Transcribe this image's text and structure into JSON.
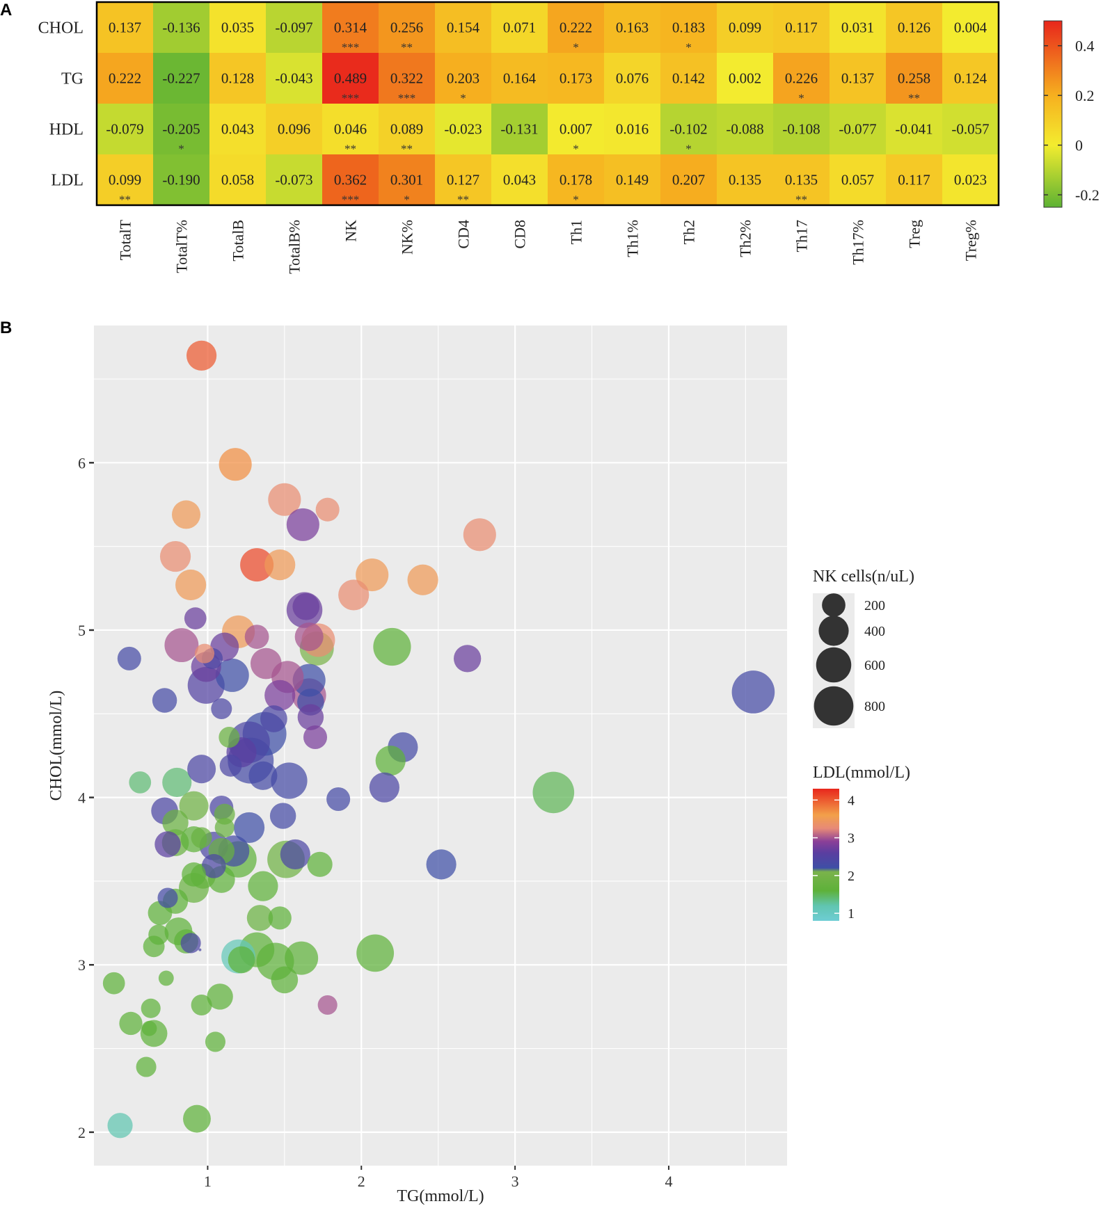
{
  "panels": {
    "a": "A",
    "b": "B"
  },
  "chart_data": [
    {
      "type": "heatmap",
      "rows": [
        "CHOL",
        "TG",
        "HDL",
        "LDL"
      ],
      "columns": [
        "TotalT",
        "TotalT%",
        "TotalB",
        "TotalB%",
        "NK",
        "NK%",
        "CD4",
        "CD8",
        "Th1",
        "Th1%",
        "Th2",
        "Th2%",
        "Th17",
        "Th17%",
        "Treg",
        "Treg%"
      ],
      "values": [
        [
          "0.137",
          "-0.136",
          "0.035",
          "-0.097",
          "0.314",
          "0.256",
          "0.154",
          "0.071",
          "0.222",
          "0.163",
          "0.183",
          "0.099",
          "0.117",
          "0.031",
          "0.126",
          "0.004"
        ],
        [
          "0.222",
          "-0.227",
          "0.128",
          "-0.043",
          "0.489",
          "0.322",
          "0.203",
          "0.164",
          "0.173",
          "0.076",
          "0.142",
          "0.002",
          "0.226",
          "0.137",
          "0.258",
          "0.124"
        ],
        [
          "-0.079",
          "-0.205",
          "0.043",
          "0.096",
          "0.046",
          "0.089",
          "-0.023",
          "-0.131",
          "0.007",
          "0.016",
          "-0.102",
          "-0.088",
          "-0.108",
          "-0.077",
          "-0.041",
          "-0.057"
        ],
        [
          "0.099",
          "-0.190",
          "0.058",
          "-0.073",
          "0.362",
          "0.301",
          "0.127",
          "0.043",
          "0.178",
          "0.149",
          "0.207",
          "0.135",
          "0.135",
          "0.057",
          "0.117",
          "0.023"
        ]
      ],
      "significance": [
        [
          "",
          "",
          "",
          "",
          "***",
          "**",
          "",
          "",
          "*",
          "",
          "*",
          "",
          "",
          "",
          "",
          ""
        ],
        [
          "",
          "",
          "",
          "",
          "***",
          "***",
          "*",
          "",
          "",
          "",
          "",
          "",
          "*",
          "",
          "**",
          ""
        ],
        [
          "",
          "*",
          "",
          "",
          "**",
          "**",
          "",
          "",
          "*",
          "",
          "*",
          "",
          "",
          "",
          "",
          ""
        ],
        [
          "**",
          "",
          "",
          "",
          "***",
          "*",
          "**",
          "",
          "*",
          "",
          "",
          "",
          "**",
          "",
          "",
          ""
        ]
      ],
      "colorbar": {
        "ticks": [
          "0.4",
          "0.2",
          "0",
          "-0.2"
        ],
        "tick_values": [
          0.4,
          0.2,
          0,
          -0.2
        ],
        "range": [
          -0.25,
          0.5
        ]
      },
      "colors": {
        "low": "#5db233",
        "mid": "#f3ec2f",
        "high": "#e8261c"
      }
    },
    {
      "type": "scatter",
      "xlabel": "TG(mmol/L)",
      "ylabel": "CHOL(mmol/L)",
      "xlim": [
        0.26,
        4.77
      ],
      "ylim": [
        1.8,
        6.82
      ],
      "xticks": [
        "1",
        "2",
        "3",
        "4"
      ],
      "xtick_values": [
        1,
        2,
        3,
        4
      ],
      "yticks": [
        "2",
        "3",
        "4",
        "5",
        "6"
      ],
      "ytick_values": [
        2,
        3,
        4,
        5,
        6
      ],
      "size_legend": {
        "title": "NK cells(n/uL)",
        "labels": [
          "200",
          "400",
          "600",
          "800"
        ],
        "values": [
          200,
          400,
          600,
          800
        ]
      },
      "color_legend": {
        "title": "LDL(mmol/L)",
        "labels": [
          "4",
          "3",
          "2",
          "1"
        ],
        "values": [
          4,
          3,
          2,
          1
        ],
        "range": [
          0.8,
          4.3
        ]
      },
      "points": [
        {
          "tg": 0.96,
          "chol": 6.64,
          "nk": 300,
          "ldl": 4.0
        },
        {
          "tg": 1.18,
          "chol": 5.99,
          "nk": 380,
          "ldl": 3.7
        },
        {
          "tg": 1.5,
          "chol": 5.78,
          "nk": 380,
          "ldl": 3.3
        },
        {
          "tg": 1.78,
          "chol": 5.72,
          "nk": 150,
          "ldl": 3.3
        },
        {
          "tg": 0.86,
          "chol": 5.69,
          "nk": 260,
          "ldl": 3.5
        },
        {
          "tg": 1.62,
          "chol": 5.63,
          "nk": 380,
          "ldl": 2.8
        },
        {
          "tg": 2.77,
          "chol": 5.57,
          "nk": 380,
          "ldl": 3.3
        },
        {
          "tg": 0.79,
          "chol": 5.44,
          "nk": 320,
          "ldl": 3.3
        },
        {
          "tg": 1.32,
          "chol": 5.39,
          "nk": 400,
          "ldl": 4.1
        },
        {
          "tg": 1.47,
          "chol": 5.39,
          "nk": 320,
          "ldl": 3.5
        },
        {
          "tg": 2.07,
          "chol": 5.33,
          "nk": 380,
          "ldl": 3.5
        },
        {
          "tg": 2.4,
          "chol": 5.3,
          "nk": 320,
          "ldl": 3.5
        },
        {
          "tg": 0.89,
          "chol": 5.27,
          "nk": 320,
          "ldl": 3.5
        },
        {
          "tg": 1.95,
          "chol": 5.21,
          "nk": 320,
          "ldl": 3.3
        },
        {
          "tg": 1.63,
          "chol": 5.12,
          "nk": 480,
          "ldl": 2.7
        },
        {
          "tg": 1.64,
          "chol": 5.14,
          "nk": 220,
          "ldl": 2.7
        },
        {
          "tg": 0.92,
          "chol": 5.07,
          "nk": 120,
          "ldl": 2.7
        },
        {
          "tg": 1.2,
          "chol": 4.99,
          "nk": 380,
          "ldl": 3.5
        },
        {
          "tg": 1.32,
          "chol": 4.96,
          "nk": 160,
          "ldl": 3.0
        },
        {
          "tg": 1.66,
          "chol": 4.96,
          "nk": 260,
          "ldl": 3.0
        },
        {
          "tg": 1.72,
          "chol": 4.94,
          "nk": 400,
          "ldl": 3.3
        },
        {
          "tg": 0.83,
          "chol": 4.91,
          "nk": 420,
          "ldl": 3.0
        },
        {
          "tg": 1.11,
          "chol": 4.9,
          "nk": 260,
          "ldl": 2.7
        },
        {
          "tg": 2.2,
          "chol": 4.9,
          "nk": 550,
          "ldl": 1.6
        },
        {
          "tg": 1.71,
          "chol": 4.89,
          "nk": 420,
          "ldl": 2.1
        },
        {
          "tg": 0.98,
          "chol": 4.86,
          "nk": 80,
          "ldl": 3.3
        },
        {
          "tg": 0.49,
          "chol": 4.83,
          "nk": 150,
          "ldl": 2.3
        },
        {
          "tg": 1.03,
          "chol": 4.83,
          "nk": 100,
          "ldl": 2.4
        },
        {
          "tg": 2.69,
          "chol": 4.83,
          "nk": 230,
          "ldl": 2.7
        },
        {
          "tg": 1.38,
          "chol": 4.8,
          "nk": 330,
          "ldl": 3.0
        },
        {
          "tg": 0.99,
          "chol": 4.78,
          "nk": 300,
          "ldl": 2.7
        },
        {
          "tg": 1.16,
          "chol": 4.73,
          "nk": 400,
          "ldl": 2.2
        },
        {
          "tg": 1.52,
          "chol": 4.72,
          "nk": 360,
          "ldl": 3.0
        },
        {
          "tg": 1.66,
          "chol": 4.7,
          "nk": 380,
          "ldl": 2.2
        },
        {
          "tg": 0.99,
          "chol": 4.67,
          "nk": 520,
          "ldl": 2.5
        },
        {
          "tg": 4.55,
          "chol": 4.63,
          "nk": 760,
          "ldl": 2.3
        },
        {
          "tg": 1.47,
          "chol": 4.61,
          "nk": 320,
          "ldl": 2.8
        },
        {
          "tg": 1.66,
          "chol": 4.61,
          "nk": 420,
          "ldl": 3.0
        },
        {
          "tg": 0.72,
          "chol": 4.58,
          "nk": 170,
          "ldl": 2.3
        },
        {
          "tg": 1.67,
          "chol": 4.57,
          "nk": 220,
          "ldl": 2.2
        },
        {
          "tg": 1.09,
          "chol": 4.53,
          "nk": 100,
          "ldl": 2.4
        },
        {
          "tg": 1.67,
          "chol": 4.48,
          "nk": 200,
          "ldl": 2.7
        },
        {
          "tg": 1.43,
          "chol": 4.47,
          "nk": 220,
          "ldl": 2.4
        },
        {
          "tg": 1.37,
          "chol": 4.38,
          "nk": 800,
          "ldl": 2.2
        },
        {
          "tg": 1.7,
          "chol": 4.36,
          "nk": 150,
          "ldl": 2.8
        },
        {
          "tg": 1.14,
          "chol": 4.36,
          "nk": 100,
          "ldl": 1.8
        },
        {
          "tg": 1.27,
          "chol": 4.33,
          "nk": 700,
          "ldl": 2.4
        },
        {
          "tg": 2.27,
          "chol": 4.3,
          "nk": 300,
          "ldl": 2.3
        },
        {
          "tg": 1.22,
          "chol": 4.27,
          "nk": 300,
          "ldl": 2.6
        },
        {
          "tg": 1.28,
          "chol": 4.22,
          "nk": 900,
          "ldl": 2.3
        },
        {
          "tg": 2.19,
          "chol": 4.22,
          "nk": 300,
          "ldl": 1.6
        },
        {
          "tg": 0.96,
          "chol": 4.17,
          "nk": 260,
          "ldl": 2.4
        },
        {
          "tg": 1.15,
          "chol": 4.19,
          "nk": 120,
          "ldl": 2.4
        },
        {
          "tg": 1.36,
          "chol": 4.13,
          "nk": 260,
          "ldl": 2.3
        },
        {
          "tg": 1.53,
          "chol": 4.1,
          "nk": 500,
          "ldl": 2.3
        },
        {
          "tg": 0.8,
          "chol": 4.09,
          "nk": 280,
          "ldl": 1.4
        },
        {
          "tg": 0.56,
          "chol": 4.09,
          "nk": 120,
          "ldl": 1.4
        },
        {
          "tg": 2.15,
          "chol": 4.06,
          "nk": 300,
          "ldl": 2.4
        },
        {
          "tg": 3.25,
          "chol": 4.03,
          "nk": 700,
          "ldl": 1.5
        },
        {
          "tg": 1.85,
          "chol": 3.99,
          "nk": 150,
          "ldl": 2.3
        },
        {
          "tg": 0.91,
          "chol": 3.95,
          "nk": 280,
          "ldl": 1.9
        },
        {
          "tg": 1.09,
          "chol": 3.94,
          "nk": 150,
          "ldl": 2.4
        },
        {
          "tg": 0.72,
          "chol": 3.92,
          "nk": 220,
          "ldl": 2.4
        },
        {
          "tg": 1.11,
          "chol": 3.9,
          "nk": 100,
          "ldl": 1.8
        },
        {
          "tg": 1.49,
          "chol": 3.89,
          "nk": 200,
          "ldl": 2.3
        },
        {
          "tg": 0.79,
          "chol": 3.85,
          "nk": 200,
          "ldl": 1.8
        },
        {
          "tg": 1.27,
          "chol": 3.82,
          "nk": 320,
          "ldl": 2.2
        },
        {
          "tg": 1.11,
          "chol": 3.82,
          "nk": 80,
          "ldl": 1.8
        },
        {
          "tg": 0.91,
          "chol": 3.75,
          "nk": 200,
          "ldl": 1.6
        },
        {
          "tg": 0.96,
          "chol": 3.76,
          "nk": 100,
          "ldl": 1.8
        },
        {
          "tg": 0.79,
          "chol": 3.73,
          "nk": 220,
          "ldl": 1.8
        },
        {
          "tg": 0.74,
          "chol": 3.72,
          "nk": 200,
          "ldl": 2.6
        },
        {
          "tg": 1.04,
          "chol": 3.71,
          "nk": 260,
          "ldl": 2.4
        },
        {
          "tg": 1.17,
          "chol": 3.68,
          "nk": 330,
          "ldl": 2.3
        },
        {
          "tg": 1.09,
          "chol": 3.68,
          "nk": 200,
          "ldl": 1.8
        },
        {
          "tg": 1.2,
          "chol": 3.63,
          "nk": 500,
          "ldl": 1.6
        },
        {
          "tg": 1.51,
          "chol": 3.63,
          "nk": 540,
          "ldl": 1.9
        },
        {
          "tg": 1.57,
          "chol": 3.66,
          "nk": 300,
          "ldl": 2.4
        },
        {
          "tg": 1.73,
          "chol": 3.6,
          "nk": 180,
          "ldl": 1.6
        },
        {
          "tg": 2.52,
          "chol": 3.6,
          "nk": 300,
          "ldl": 2.2
        },
        {
          "tg": 1.04,
          "chol": 3.59,
          "nk": 160,
          "ldl": 2.4
        },
        {
          "tg": 0.91,
          "chol": 3.54,
          "nk": 160,
          "ldl": 1.6
        },
        {
          "tg": 0.97,
          "chol": 3.53,
          "nk": 180,
          "ldl": 1.7
        },
        {
          "tg": 1.09,
          "chol": 3.51,
          "nk": 220,
          "ldl": 1.6
        },
        {
          "tg": 0.91,
          "chol": 3.46,
          "nk": 300,
          "ldl": 1.8
        },
        {
          "tg": 1.36,
          "chol": 3.47,
          "nk": 300,
          "ldl": 1.6
        },
        {
          "tg": 0.74,
          "chol": 3.4,
          "nk": 90,
          "ldl": 2.3
        },
        {
          "tg": 0.79,
          "chol": 3.38,
          "nk": 180,
          "ldl": 1.6
        },
        {
          "tg": 0.69,
          "chol": 3.31,
          "nk": 160,
          "ldl": 1.6
        },
        {
          "tg": 1.34,
          "chol": 3.28,
          "nk": 200,
          "ldl": 1.8
        },
        {
          "tg": 1.47,
          "chol": 3.28,
          "nk": 140,
          "ldl": 1.6
        },
        {
          "tg": 0.81,
          "chol": 3.2,
          "nk": 240,
          "ldl": 1.6
        },
        {
          "tg": 0.68,
          "chol": 3.18,
          "nk": 90,
          "ldl": 1.6
        },
        {
          "tg": 0.86,
          "chol": 3.14,
          "nk": 160,
          "ldl": 1.6
        },
        {
          "tg": 0.89,
          "chol": 3.13,
          "nk": 90,
          "ldl": 2.4
        },
        {
          "tg": 0.65,
          "chol": 3.11,
          "nk": 110,
          "ldl": 1.6
        },
        {
          "tg": 1.32,
          "chol": 3.09,
          "nk": 450,
          "ldl": 1.6
        },
        {
          "tg": 2.09,
          "chol": 3.07,
          "nk": 540,
          "ldl": 1.6
        },
        {
          "tg": 0.95,
          "chol": 3.09,
          "nk": 5,
          "ldl": 2.4
        },
        {
          "tg": 1.2,
          "chol": 3.05,
          "nk": 420,
          "ldl": 1.1
        },
        {
          "tg": 1.22,
          "chol": 3.03,
          "nk": 220,
          "ldl": 1.6
        },
        {
          "tg": 1.44,
          "chol": 3.02,
          "nk": 540,
          "ldl": 1.6
        },
        {
          "tg": 1.61,
          "chol": 3.04,
          "nk": 400,
          "ldl": 1.6
        },
        {
          "tg": 1.5,
          "chol": 2.91,
          "nk": 220,
          "ldl": 1.6
        },
        {
          "tg": 0.73,
          "chol": 2.92,
          "nk": 30,
          "ldl": 1.6
        },
        {
          "tg": 0.39,
          "chol": 2.89,
          "nk": 120,
          "ldl": 1.6
        },
        {
          "tg": 1.08,
          "chol": 2.81,
          "nk": 200,
          "ldl": 1.6
        },
        {
          "tg": 0.96,
          "chol": 2.76,
          "nk": 100,
          "ldl": 1.6
        },
        {
          "tg": 1.78,
          "chol": 2.76,
          "nk": 80,
          "ldl": 3.0
        },
        {
          "tg": 0.63,
          "chol": 2.74,
          "nk": 80,
          "ldl": 1.6
        },
        {
          "tg": 0.5,
          "chol": 2.65,
          "nk": 140,
          "ldl": 1.6
        },
        {
          "tg": 0.62,
          "chol": 2.62,
          "nk": 30,
          "ldl": 1.6
        },
        {
          "tg": 0.65,
          "chol": 2.59,
          "nk": 220,
          "ldl": 1.6
        },
        {
          "tg": 1.05,
          "chol": 2.54,
          "nk": 90,
          "ldl": 1.6
        },
        {
          "tg": 0.6,
          "chol": 2.39,
          "nk": 90,
          "ldl": 1.6
        },
        {
          "tg": 0.93,
          "chol": 2.08,
          "nk": 240,
          "ldl": 1.6
        },
        {
          "tg": 0.43,
          "chol": 2.04,
          "nk": 180,
          "ldl": 1.2
        }
      ]
    }
  ]
}
